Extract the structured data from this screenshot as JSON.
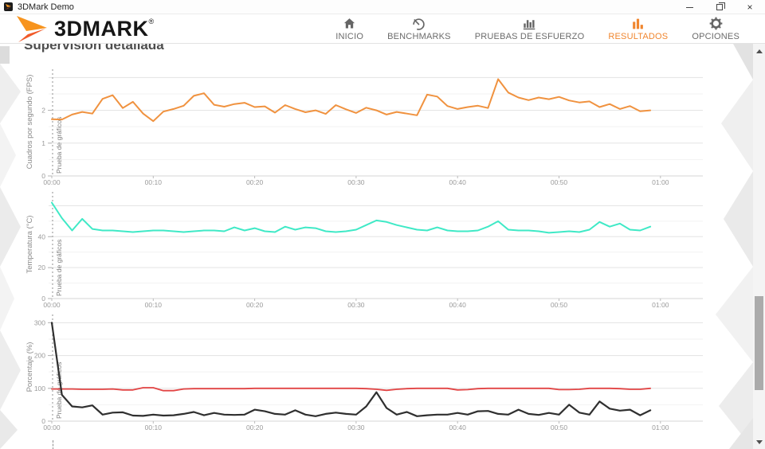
{
  "window": {
    "title": "3DMark Demo",
    "controls": {
      "minimize": "minimize",
      "maximize": "maximize",
      "close": "close"
    }
  },
  "logo": {
    "text": "3DMARK",
    "reg": "®"
  },
  "nav": {
    "items": [
      {
        "id": "inicio",
        "label": "INICIO",
        "icon": "home-icon",
        "active": false
      },
      {
        "id": "benchmarks",
        "label": "BENCHMARKS",
        "icon": "gauge-icon",
        "active": false
      },
      {
        "id": "pruebas-de-esfuerzo",
        "label": "PRUEBAS DE ESFUERZO",
        "icon": "bar-chart-icon",
        "active": false
      },
      {
        "id": "resultados",
        "label": "RESULTADOS",
        "icon": "bars-icon",
        "active": true
      },
      {
        "id": "opciones",
        "label": "OPCIONES",
        "icon": "gear-icon",
        "active": false
      }
    ],
    "active_color": "#f0862f",
    "inactive_color": "#666666"
  },
  "page": {
    "heading": "Supervisión detallada"
  },
  "chart_data": [
    {
      "type": "line",
      "ylabel": "Cuadros por segundo (FPS)",
      "annotation": "Prueba de gráficos",
      "x_ticks": [
        "00:00",
        "00:10",
        "00:20",
        "00:30",
        "00:40",
        "00:50",
        "01:00"
      ],
      "x_tick_minutes": [
        0,
        10,
        20,
        30,
        40,
        50,
        60
      ],
      "x_step_minutes": 1,
      "ylim": [
        0,
        3.3
      ],
      "y_major_ticks": [
        0,
        1,
        2
      ],
      "y_major_unit": 1,
      "y_minor_step": 0.5,
      "grid": true,
      "series": [
        {
          "name": "FPS",
          "color": "#f0923f",
          "width": 2,
          "values": [
            1.73,
            1.72,
            1.87,
            1.95,
            1.9,
            2.35,
            2.46,
            2.07,
            2.26,
            1.9,
            1.67,
            1.96,
            2.04,
            2.14,
            2.44,
            2.52,
            2.17,
            2.11,
            2.19,
            2.23,
            2.1,
            2.12,
            1.93,
            2.16,
            2.04,
            1.94,
            2.0,
            1.89,
            2.16,
            2.03,
            1.92,
            2.08,
            2.0,
            1.87,
            1.95,
            1.9,
            1.85,
            2.48,
            2.42,
            2.13,
            2.04,
            2.1,
            2.14,
            2.07,
            2.95,
            2.54,
            2.39,
            2.31,
            2.39,
            2.34,
            2.41,
            2.3,
            2.24,
            2.27,
            2.1,
            2.19,
            2.04,
            2.13,
            1.97,
            2.0
          ]
        }
      ]
    },
    {
      "type": "line",
      "ylabel": "Temperatura (°C)",
      "annotation": "Prueba de gráficos",
      "x_ticks": [
        "00:00",
        "00:10",
        "00:20",
        "00:30",
        "00:40",
        "00:50",
        "01:00"
      ],
      "x_tick_minutes": [
        0,
        10,
        20,
        30,
        40,
        50,
        60
      ],
      "x_step_minutes": 1,
      "ylim": [
        0,
        70
      ],
      "y_major_ticks": [
        0,
        20,
        40
      ],
      "y_major_unit": 20,
      "y_minor_step": 10,
      "grid": true,
      "series": [
        {
          "name": "Temperatura",
          "color": "#3fe9c6",
          "width": 2,
          "values": [
            62,
            52,
            44,
            51.5,
            45,
            44,
            44,
            43.5,
            43,
            43.5,
            44,
            44,
            43.5,
            43,
            43.5,
            44,
            44,
            43.5,
            46,
            44,
            45.5,
            43.5,
            43,
            46.5,
            44.5,
            46,
            45.5,
            43.5,
            43,
            43.5,
            44.5,
            47.5,
            50.5,
            49.5,
            47.5,
            46,
            44.5,
            44,
            46,
            44,
            43.5,
            43.5,
            44,
            46.5,
            50,
            44.5,
            44,
            44,
            43.5,
            42.5,
            43,
            43.5,
            43,
            44.5,
            49.5,
            46.5,
            48.5,
            44.5,
            44,
            46.5
          ]
        }
      ]
    },
    {
      "type": "line",
      "ylabel": "Porcentaje (%)",
      "annotation": "Prueba de gráficos",
      "x_ticks": [
        "00:00",
        "00:10",
        "00:20",
        "00:30",
        "00:40",
        "00:50",
        "01:00"
      ],
      "x_tick_minutes": [
        0,
        10,
        20,
        30,
        40,
        50,
        60
      ],
      "x_step_minutes": 1,
      "ylim": [
        0,
        330
      ],
      "y_major_ticks": [
        0,
        100,
        200,
        300
      ],
      "y_major_unit": 100,
      "y_minor_step": 50,
      "grid": true,
      "series": [
        {
          "name": "serie_roja",
          "color": "#e24444",
          "width": 1.8,
          "values": [
            98,
            98,
            98,
            97,
            97,
            97,
            98,
            95,
            95,
            102,
            102,
            93,
            93,
            98,
            99,
            99,
            99,
            99,
            99,
            99,
            100,
            100,
            100,
            100,
            100,
            100,
            100,
            100,
            100,
            100,
            100,
            99,
            97,
            94,
            97,
            99,
            100,
            100,
            100,
            100,
            95,
            96,
            99,
            100,
            100,
            100,
            100,
            100,
            100,
            100,
            96,
            96,
            97,
            100,
            100,
            100,
            99,
            97,
            97,
            100
          ]
        },
        {
          "name": "serie_negra",
          "color": "#2f2f2f",
          "width": 2.2,
          "values": [
            300,
            80,
            45,
            42,
            48,
            20,
            26,
            27,
            17,
            16,
            20,
            17,
            18,
            22,
            28,
            18,
            25,
            20,
            19,
            20,
            35,
            30,
            22,
            20,
            33,
            20,
            15,
            22,
            26,
            22,
            20,
            45,
            88,
            40,
            20,
            28,
            15,
            18,
            20,
            20,
            25,
            20,
            30,
            31,
            22,
            20,
            35,
            22,
            19,
            25,
            20,
            50,
            26,
            20,
            60,
            38,
            32,
            35,
            18,
            33
          ]
        }
      ]
    }
  ]
}
